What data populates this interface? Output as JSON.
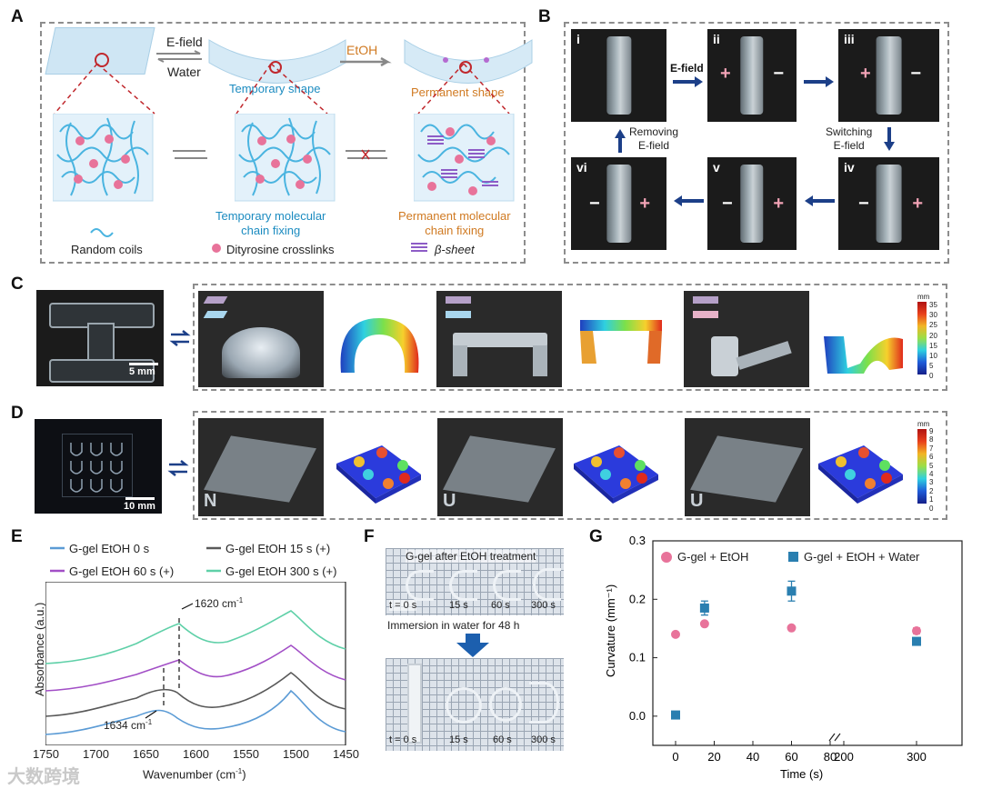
{
  "panels": {
    "a": "A",
    "b": "B",
    "c": "C",
    "d": "D",
    "e": "E",
    "f": "F",
    "g": "G"
  },
  "panel_a": {
    "efield": "E-field",
    "water": "Water",
    "etoh": "EtOH",
    "temp_shape": "Temporary shape",
    "perm_shape": "Permanent shape",
    "temp_fix": "Temporary molecular\nchain fixing",
    "perm_fix": "Permanent molecular\nchain fixing",
    "legend_coils": "Random coils",
    "legend_dity": "Dityrosine crosslinks",
    "legend_beta": "β-sheet",
    "color_temp": "#1b8bc0",
    "color_perm": "#d07a22",
    "color_dot": "#e8739a",
    "color_coil": "#4ab4e0"
  },
  "panel_b": {
    "frames": [
      {
        "n": "i",
        "l": "",
        "r": ""
      },
      {
        "n": "ii",
        "l": "+",
        "r": "−"
      },
      {
        "n": "iii",
        "l": "+",
        "r": "−"
      },
      {
        "n": "iv",
        "l": "−",
        "r": "+"
      },
      {
        "n": "v",
        "l": "−",
        "r": "+"
      },
      {
        "n": "vi",
        "l": "−",
        "r": "+"
      }
    ],
    "efield": "E-field",
    "removing": "Removing\nE-field",
    "switching": "Switching\nE-field",
    "color_arrow": "#1c3f88",
    "color_plus": "#f2a3b6"
  },
  "panel_c": {
    "scale": "5 mm",
    "colorbar_unit": "mm",
    "colorbar_ticks": [
      "35",
      "30",
      "25",
      "20",
      "15",
      "10",
      "5",
      "0"
    ]
  },
  "panel_d": {
    "scale": "10 mm",
    "colorbar_unit": "mm",
    "colorbar_ticks": [
      "9",
      "8",
      "7",
      "6",
      "5",
      "4",
      "3",
      "2",
      "1",
      "0"
    ]
  },
  "panel_e": {
    "legend": [
      {
        "label": "G-gel EtOH 0 s",
        "color": "#5b9bd5"
      },
      {
        "label": "G-gel EtOH 15 s (+)",
        "color": "#595959"
      },
      {
        "label": "G-gel EtOH 60 s (+)",
        "color": "#a24fc6"
      },
      {
        "label": "G-gel EtOH 300 s (+)",
        "color": "#5fd0a8"
      }
    ],
    "ann1": "1620 cm",
    "ann1_sup": "-1",
    "ann2": "1634 cm",
    "ann2_sup": "-1",
    "ylabel": "Absorbance  (a.u.)",
    "xlabel": "Wavenumber  (cm",
    "xlabel_sup": "-1",
    "xlabel_end": ")",
    "xticks": [
      "1750",
      "1700",
      "1650",
      "1600",
      "1550",
      "1500",
      "1450"
    ]
  },
  "panel_f": {
    "top_title": "G-gel after EtOH treatment",
    "labels": [
      "t = 0 s",
      "15 s",
      "60 s",
      "300 s"
    ],
    "mid": "Immersion in water for 48 h"
  },
  "chart_data": {
    "type": "scatter",
    "title": "",
    "xlabel": "Time  (s)",
    "ylabel": "Curvature  (mm⁻¹)",
    "xticks": [
      "0",
      "20",
      "40",
      "60",
      "80",
      "200",
      "300"
    ],
    "yticks": [
      "0.0",
      "0.1",
      "0.2",
      "0.3"
    ],
    "ylim": [
      -0.05,
      0.3
    ],
    "series": [
      {
        "name": "G-gel + EtOH",
        "color": "#e8739a",
        "marker": "circle",
        "x": [
          0,
          15,
          60,
          300
        ],
        "y": [
          0.14,
          0.158,
          0.151,
          0.146
        ],
        "err": [
          0,
          0,
          0,
          0.005
        ]
      },
      {
        "name": "G-gel + EtOH + Water",
        "color": "#2a7fb0",
        "marker": "square",
        "x": [
          0,
          15,
          60,
          300
        ],
        "y": [
          0.002,
          0.185,
          0.214,
          0.128
        ],
        "err": [
          0,
          0.012,
          0.017,
          0.006
        ]
      }
    ]
  },
  "watermark": "大数跨境"
}
